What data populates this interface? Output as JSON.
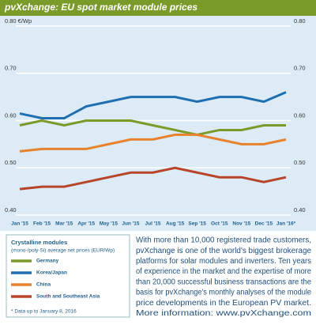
{
  "chart_data": {
    "type": "line",
    "title": "pvXchange: EU spot market module prices",
    "categories": [
      "Jan '15",
      "Feb '15",
      "Mar '15",
      "Apr '15",
      "May '15",
      "Jun '15",
      "Jul '15",
      "Aug '15",
      "Sep '15",
      "Oct '15",
      "Nov '15",
      "Dec '15",
      "Jan '16*"
    ],
    "series": [
      {
        "name": "Germany",
        "color": "#7a9a2a",
        "values": [
          0.59,
          0.6,
          0.59,
          0.6,
          0.6,
          0.6,
          0.59,
          0.58,
          0.57,
          0.58,
          0.58,
          0.59,
          0.59
        ]
      },
      {
        "name": "Korea/Japan",
        "color": "#1f6fb0",
        "values": [
          0.615,
          0.605,
          0.605,
          0.63,
          0.64,
          0.65,
          0.65,
          0.65,
          0.64,
          0.65,
          0.65,
          0.64,
          0.66
        ]
      },
      {
        "name": "China",
        "color": "#e8822e",
        "values": [
          0.535,
          0.54,
          0.54,
          0.54,
          0.55,
          0.56,
          0.56,
          0.57,
          0.57,
          0.56,
          0.55,
          0.55,
          0.56
        ]
      },
      {
        "name": "South and Southeast Asia",
        "color": "#b8452a",
        "values": [
          0.455,
          0.46,
          0.46,
          0.47,
          0.48,
          0.49,
          0.49,
          0.5,
          0.49,
          0.48,
          0.48,
          0.47,
          0.48
        ]
      }
    ],
    "ylim": [
      0.4,
      0.8
    ],
    "yticks": [
      {
        "value": 0.8,
        "label": "0.80 €/Wp"
      },
      {
        "value": 0.7,
        "label": "0.70"
      },
      {
        "value": 0.6,
        "label": "0.60"
      },
      {
        "value": 0.5,
        "label": "0.50"
      },
      {
        "value": 0.4,
        "label": "0.40"
      }
    ],
    "y2lim": [
      0.4,
      0.8
    ],
    "y2ticks": [
      {
        "value": 0.8,
        "label": "0.80"
      },
      {
        "value": 0.7,
        "label": "0.70"
      },
      {
        "value": 0.6,
        "label": "0.60"
      },
      {
        "value": 0.5,
        "label": "0.50"
      },
      {
        "value": 0.4,
        "label": "0.40"
      }
    ],
    "grid": true,
    "legend_title": "Crystalline modules",
    "legend_subtitle": "(mono-/poly-Si) average net prices (EUR/Wp)",
    "note": "* Data up to January 8, 2016"
  },
  "description": [
    "With more than 10,000 registered trade customers,",
    "pvXchange is one of the world's biggest brokerage",
    "platforms for solar modules and inverters. Ten years",
    "of experience in the market and the expertise of more",
    "than 20,000 successful business transactions are the",
    "basis for pvXchange's monthly analyses of the module",
    "price developments in the European PV market.",
    "More information: www.pvXchange.com"
  ]
}
